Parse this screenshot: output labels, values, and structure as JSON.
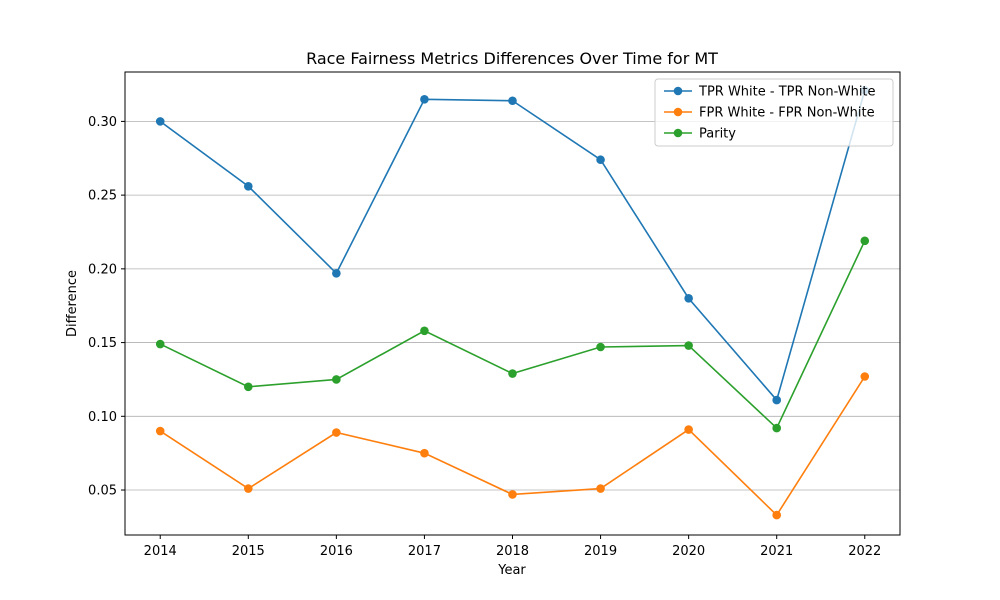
{
  "chart_data": {
    "type": "line",
    "title": "Race Fairness Metrics Differences Over Time for MT",
    "xlabel": "Year",
    "ylabel": "Difference",
    "x": [
      2014,
      2015,
      2016,
      2017,
      2018,
      2019,
      2020,
      2021,
      2022
    ],
    "ylim": [
      0.0195,
      0.3335
    ],
    "yticks": [
      0.05,
      0.1,
      0.15,
      0.2,
      0.25,
      0.3
    ],
    "ytick_labels": [
      "0.05",
      "0.10",
      "0.15",
      "0.20",
      "0.25",
      "0.30"
    ],
    "grid": "y",
    "legend_position": "top-right",
    "series": [
      {
        "name": "TPR White - TPR Non-White",
        "color": "#1f77b4",
        "values": [
          0.3,
          0.256,
          0.197,
          0.315,
          0.314,
          0.274,
          0.18,
          0.111,
          0.321
        ]
      },
      {
        "name": "FPR White - FPR Non-White",
        "color": "#ff7f0e",
        "values": [
          0.09,
          0.051,
          0.089,
          0.075,
          0.047,
          0.051,
          0.091,
          0.033,
          0.127
        ]
      },
      {
        "name": "Parity",
        "color": "#2ca02c",
        "values": [
          0.149,
          0.12,
          0.125,
          0.158,
          0.129,
          0.147,
          0.148,
          0.092,
          0.219
        ]
      }
    ]
  }
}
